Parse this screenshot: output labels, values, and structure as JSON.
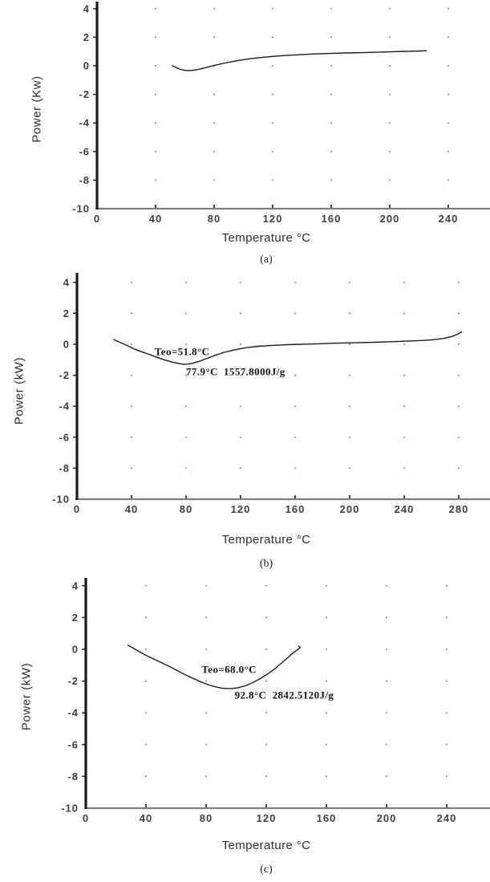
{
  "page": {
    "background_color": "#ffffff",
    "description_labels": {
      "figure_type": "line"
    }
  },
  "style": {
    "curve_color": "#1c1c1c",
    "yaxis_color": "#1a1a1a",
    "xaxis_color": "#7f7f7f",
    "tick_color": "#1a1a1a",
    "tick_label_color": "#3f3f3f",
    "grid_dot_color": "#9a9a9a",
    "annotation_color": "#151515"
  },
  "chart_data": [
    {
      "type": "line",
      "panel": "a",
      "caption": "(a)",
      "xlabel": "Temperature °C",
      "ylabel": "Power (Kw)",
      "xlim": [
        0,
        268
      ],
      "ylim": [
        -10,
        4.5
      ],
      "xticks": [
        0,
        40,
        80,
        120,
        160,
        200,
        240
      ],
      "yticks": [
        4,
        2,
        0,
        -2,
        -4,
        -6,
        -8,
        -10
      ],
      "grid": "dotted-intersections",
      "legend": "none",
      "series": [
        {
          "name": "dsc-curve-a",
          "points": [
            [
              51.5,
              0
            ],
            [
              54,
              -0.12
            ],
            [
              57,
              -0.25
            ],
            [
              60,
              -0.32
            ],
            [
              64,
              -0.33
            ],
            [
              68,
              -0.28
            ],
            [
              72,
              -0.18
            ],
            [
              76,
              -0.08
            ],
            [
              80,
              0.02
            ],
            [
              85,
              0.14
            ],
            [
              91,
              0.27
            ],
            [
              98,
              0.4
            ],
            [
              105,
              0.5
            ],
            [
              112,
              0.58
            ],
            [
              120,
              0.66
            ],
            [
              128,
              0.72
            ],
            [
              137,
              0.77
            ],
            [
              146,
              0.82
            ],
            [
              157,
              0.86
            ],
            [
              170,
              0.9
            ],
            [
              184,
              0.93
            ],
            [
              198,
              0.97
            ],
            [
              210,
              1.01
            ],
            [
              221,
              1.04
            ],
            [
              225,
              1.05
            ]
          ]
        }
      ],
      "annotations": []
    },
    {
      "type": "line",
      "panel": "b",
      "caption": "(b)",
      "xlabel": "Temperature °C",
      "ylabel": "Power (kW)",
      "xlim": [
        0,
        304
      ],
      "ylim": [
        -10,
        4.6
      ],
      "xticks": [
        0,
        40,
        80,
        120,
        160,
        200,
        240,
        280
      ],
      "yticks": [
        4,
        2,
        0,
        -2,
        -4,
        -6,
        -8,
        -10
      ],
      "grid": "dotted-intersections",
      "legend": "none",
      "series": [
        {
          "name": "dsc-curve-b",
          "points": [
            [
              27,
              0.3
            ],
            [
              31,
              0.15
            ],
            [
              36,
              -0.05
            ],
            [
              42,
              -0.3
            ],
            [
              48,
              -0.5
            ],
            [
              52,
              -0.62
            ],
            [
              58,
              -0.82
            ],
            [
              64,
              -1.0
            ],
            [
              70,
              -1.15
            ],
            [
              75,
              -1.25
            ],
            [
              79,
              -1.3
            ],
            [
              84,
              -1.25
            ],
            [
              89,
              -1.12
            ],
            [
              95,
              -0.93
            ],
            [
              101,
              -0.72
            ],
            [
              108,
              -0.52
            ],
            [
              116,
              -0.35
            ],
            [
              124,
              -0.22
            ],
            [
              133,
              -0.13
            ],
            [
              143,
              -0.07
            ],
            [
              153,
              -0.03
            ],
            [
              164,
              0.0
            ],
            [
              176,
              0.03
            ],
            [
              190,
              0.07
            ],
            [
              204,
              0.1
            ],
            [
              218,
              0.13
            ],
            [
              232,
              0.17
            ],
            [
              244,
              0.21
            ],
            [
              254,
              0.25
            ],
            [
              262,
              0.3
            ],
            [
              269,
              0.38
            ],
            [
              275,
              0.5
            ],
            [
              279,
              0.65
            ],
            [
              282,
              0.8
            ]
          ]
        }
      ],
      "annotations": [
        {
          "text": "Teo=51.8°C",
          "x": 57,
          "y": -0.5
        },
        {
          "text": "77.9°C  1557.8000J/g",
          "x": 80,
          "y": -1.8
        }
      ]
    },
    {
      "type": "line",
      "panel": "c",
      "caption": "(c)",
      "xlabel": "Temperature °C",
      "ylabel": "Power (kW)",
      "xlim": [
        0,
        269
      ],
      "ylim": [
        -10,
        4.6
      ],
      "xticks": [
        0,
        40,
        80,
        120,
        160,
        200,
        240
      ],
      "yticks": [
        4,
        2,
        0,
        -2,
        -4,
        -6,
        -8,
        -10
      ],
      "grid": "dotted-intersections",
      "legend": "none",
      "series": [
        {
          "name": "dsc-curve-c",
          "points": [
            [
              28,
              0.25
            ],
            [
              31,
              0.1
            ],
            [
              35,
              -0.12
            ],
            [
              40,
              -0.38
            ],
            [
              46,
              -0.65
            ],
            [
              52,
              -0.92
            ],
            [
              58,
              -1.2
            ],
            [
              64,
              -1.5
            ],
            [
              70,
              -1.78
            ],
            [
              76,
              -2.03
            ],
            [
              81,
              -2.22
            ],
            [
              86,
              -2.36
            ],
            [
              91,
              -2.46
            ],
            [
              96,
              -2.48
            ],
            [
              101,
              -2.43
            ],
            [
              106,
              -2.3
            ],
            [
              111,
              -2.1
            ],
            [
              116,
              -1.85
            ],
            [
              121,
              -1.55
            ],
            [
              126,
              -1.2
            ],
            [
              130,
              -0.88
            ],
            [
              134,
              -0.55
            ],
            [
              137,
              -0.3
            ],
            [
              140,
              -0.08
            ],
            [
              142,
              0.05
            ],
            [
              142.5,
              0.12
            ],
            [
              141.5,
              0.2
            ]
          ]
        }
      ],
      "annotations": [
        {
          "text": "Teo=68.0°C",
          "x": 77,
          "y": -1.3
        },
        {
          "text": "92.8°C  2842.5120J/g",
          "x": 99,
          "y": -2.9
        }
      ]
    }
  ]
}
